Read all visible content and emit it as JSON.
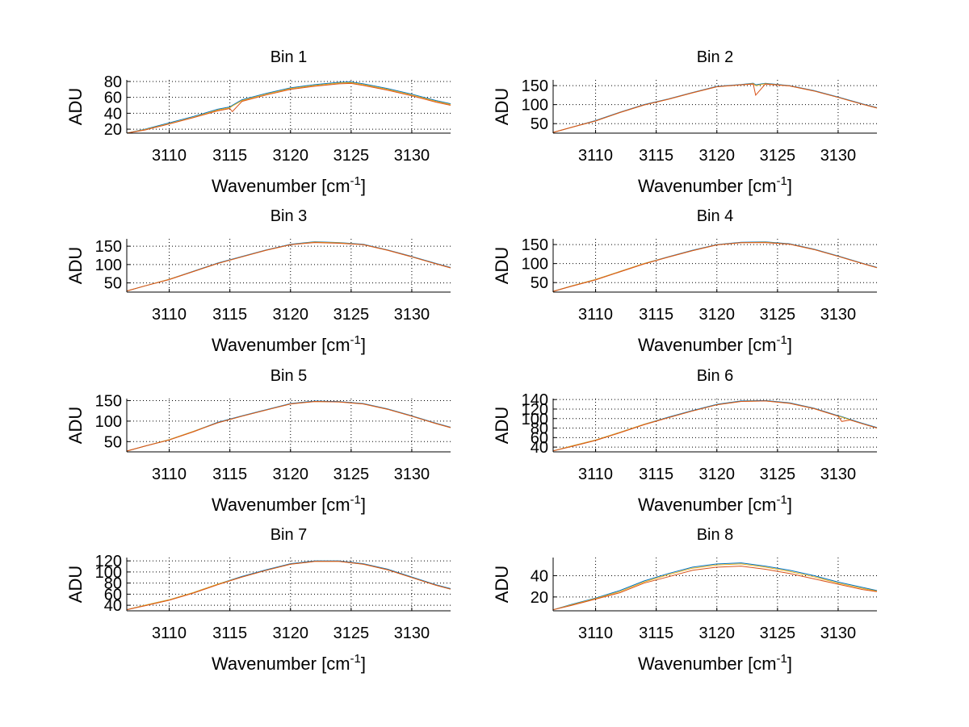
{
  "figure": {
    "background": "#ffffff",
    "series_colors": [
      "#0072bd",
      "#edb120",
      "#d95319"
    ]
  },
  "chart_data": [
    {
      "type": "line",
      "title": "Bin 1",
      "xlabel": "Wavenumber [cm",
      "xlabel_sup": "-1",
      "xlabel_suffix": "]",
      "ylabel": "ADU",
      "xlim": [
        3106.5,
        3133.2
      ],
      "ylim": [
        15,
        82
      ],
      "xticks": [
        3110,
        3115,
        3120,
        3125,
        3130
      ],
      "yticks": [
        20,
        40,
        60,
        80
      ],
      "grid": true,
      "x": [
        3106.5,
        3108,
        3110,
        3112,
        3114,
        3115,
        3115.2,
        3116,
        3118,
        3120,
        3122,
        3124,
        3125,
        3126,
        3128,
        3130,
        3132,
        3133.2
      ],
      "series": [
        {
          "values": [
            15,
            20,
            28,
            36,
            45,
            48,
            50,
            57,
            65,
            72,
            76,
            79,
            79.5,
            77,
            71,
            64,
            56,
            52
          ]
        },
        {
          "values": [
            15,
            19.5,
            27,
            35,
            44,
            47,
            49,
            56,
            64,
            71,
            75,
            78,
            78.5,
            76,
            70,
            63,
            55,
            51
          ]
        },
        {
          "values": [
            15,
            19,
            26.5,
            34.5,
            43,
            46,
            42,
            55,
            63,
            70,
            74,
            77,
            77.5,
            75,
            69,
            62,
            54,
            50
          ]
        }
      ]
    },
    {
      "type": "line",
      "title": "Bin 2",
      "xlabel": "Wavenumber [cm",
      "xlabel_sup": "-1",
      "xlabel_suffix": "]",
      "ylabel": "ADU",
      "xlim": [
        3106.5,
        3133.2
      ],
      "ylim": [
        25,
        165
      ],
      "xticks": [
        3110,
        3115,
        3120,
        3125,
        3130
      ],
      "yticks": [
        50,
        100,
        150
      ],
      "grid": true,
      "x": [
        3106.5,
        3108,
        3110,
        3112,
        3114,
        3116,
        3118,
        3120,
        3122,
        3123,
        3123.2,
        3124,
        3126,
        3128,
        3130,
        3132,
        3133.2
      ],
      "series": [
        {
          "values": [
            27,
            40,
            58,
            80,
            100,
            115,
            132,
            148,
            153,
            156,
            152,
            156,
            150,
            137,
            120,
            102,
            92
          ]
        },
        {
          "values": [
            27,
            40,
            57,
            79,
            99,
            114,
            131,
            147,
            152,
            155,
            150,
            155,
            149,
            136,
            119,
            101,
            91
          ]
        },
        {
          "values": [
            27,
            40,
            57,
            79,
            99,
            114,
            131,
            147,
            152,
            154,
            125,
            154,
            149,
            136,
            119,
            101,
            91
          ]
        }
      ]
    },
    {
      "type": "line",
      "title": "Bin 3",
      "xlabel": "Wavenumber [cm",
      "xlabel_sup": "-1",
      "xlabel_suffix": "]",
      "ylabel": "ADU",
      "xlim": [
        3106.5,
        3133.2
      ],
      "ylim": [
        25,
        170
      ],
      "xticks": [
        3110,
        3115,
        3120,
        3125,
        3130
      ],
      "yticks": [
        50,
        100,
        150
      ],
      "grid": true,
      "x": [
        3106.5,
        3108,
        3110,
        3112,
        3114,
        3116,
        3118,
        3120,
        3122,
        3124,
        3126,
        3128,
        3130,
        3132,
        3133.2
      ],
      "series": [
        {
          "values": [
            28,
            42,
            60,
            82,
            104,
            122,
            140,
            155,
            162,
            160,
            155,
            140,
            122,
            103,
            92
          ]
        },
        {
          "values": [
            28,
            42,
            60,
            81,
            103,
            121,
            139,
            154,
            161,
            159,
            154,
            139,
            121,
            102,
            91
          ]
        },
        {
          "values": [
            28,
            42,
            59,
            81,
            103,
            121,
            139,
            154,
            160,
            158,
            154,
            139,
            121,
            102,
            91
          ]
        }
      ]
    },
    {
      "type": "line",
      "title": "Bin 4",
      "xlabel": "Wavenumber [cm",
      "xlabel_sup": "-1",
      "xlabel_suffix": "]",
      "ylabel": "ADU",
      "xlim": [
        3106.5,
        3133.2
      ],
      "ylim": [
        25,
        165
      ],
      "xticks": [
        3110,
        3115,
        3120,
        3125,
        3130
      ],
      "yticks": [
        50,
        100,
        150
      ],
      "grid": true,
      "x": [
        3106.5,
        3108,
        3110,
        3112,
        3114,
        3116,
        3118,
        3120,
        3122,
        3124,
        3126,
        3128,
        3130,
        3132,
        3133.2
      ],
      "series": [
        {
          "values": [
            27,
            41,
            58,
            79,
            100,
            118,
            135,
            150,
            156,
            157,
            152,
            138,
            120,
            101,
            90
          ]
        },
        {
          "values": [
            27,
            41,
            58,
            79,
            100,
            117,
            134,
            149,
            155,
            156,
            151,
            137,
            119,
            100,
            89
          ]
        },
        {
          "values": [
            27,
            40,
            57,
            78,
            99,
            117,
            134,
            149,
            155,
            155,
            151,
            137,
            119,
            100,
            89
          ]
        }
      ]
    },
    {
      "type": "line",
      "title": "Bin 5",
      "xlabel": "Wavenumber [cm",
      "xlabel_sup": "-1",
      "xlabel_suffix": "]",
      "ylabel": "ADU",
      "xlim": [
        3106.5,
        3133.2
      ],
      "ylim": [
        25,
        155
      ],
      "xticks": [
        3110,
        3115,
        3120,
        3125,
        3130
      ],
      "yticks": [
        50,
        100,
        150
      ],
      "grid": true,
      "x": [
        3106.5,
        3108,
        3110,
        3112,
        3114,
        3116,
        3118,
        3120,
        3122,
        3124,
        3126,
        3128,
        3130,
        3132,
        3133.2
      ],
      "series": [
        {
          "values": [
            27,
            39,
            55,
            75,
            97,
            113,
            128,
            143,
            149,
            148,
            143,
            130,
            113,
            95,
            85
          ]
        },
        {
          "values": [
            27,
            39,
            55,
            75,
            96,
            112,
            127,
            142,
            148,
            147,
            142,
            129,
            112,
            94,
            84
          ]
        },
        {
          "values": [
            27,
            39,
            54,
            74,
            96,
            112,
            127,
            142,
            148,
            147,
            142,
            129,
            112,
            94,
            84
          ]
        }
      ]
    },
    {
      "type": "line",
      "title": "Bin 6",
      "xlabel": "Wavenumber [cm",
      "xlabel_sup": "-1",
      "xlabel_suffix": "]",
      "ylabel": "ADU",
      "xlim": [
        3106.5,
        3133.2
      ],
      "ylim": [
        30,
        142
      ],
      "xticks": [
        3110,
        3115,
        3120,
        3125,
        3130
      ],
      "yticks": [
        40,
        60,
        80,
        100,
        120,
        140
      ],
      "grid": true,
      "x": [
        3106.5,
        3108,
        3110,
        3112,
        3114,
        3116,
        3118,
        3120,
        3122,
        3124,
        3126,
        3128,
        3130,
        3130.3,
        3131,
        3132,
        3133.2
      ],
      "series": [
        {
          "values": [
            32,
            42,
            55,
            71,
            88,
            103,
            117,
            130,
            137,
            138,
            133,
            122,
            106,
            104,
            98,
            90,
            81
          ]
        },
        {
          "values": [
            32,
            42,
            55,
            71,
            88,
            102,
            116,
            129,
            136,
            137,
            132,
            121,
            105,
            103,
            97,
            89,
            80
          ]
        },
        {
          "values": [
            32,
            41,
            54,
            70,
            87,
            102,
            116,
            129,
            136,
            137,
            132,
            121,
            105,
            94,
            97,
            89,
            80
          ]
        }
      ]
    },
    {
      "type": "line",
      "title": "Bin 7",
      "xlabel": "Wavenumber [cm",
      "xlabel_sup": "-1",
      "xlabel_suffix": "]",
      "ylabel": "ADU",
      "xlim": [
        3106.5,
        3133.2
      ],
      "ylim": [
        30,
        126
      ],
      "xticks": [
        3110,
        3115,
        3120,
        3125,
        3130
      ],
      "yticks": [
        40,
        60,
        80,
        100,
        120
      ],
      "grid": true,
      "x": [
        3106.5,
        3108,
        3110,
        3112,
        3114,
        3116,
        3118,
        3120,
        3122,
        3124,
        3126,
        3128,
        3130,
        3132,
        3133.2
      ],
      "series": [
        {
          "values": [
            32,
            40,
            50,
            63,
            78,
            92,
            104,
            115,
            120,
            120,
            115,
            105,
            91,
            77,
            70
          ]
        },
        {
          "values": [
            32,
            40,
            50,
            63,
            78,
            91,
            103,
            114,
            119,
            119,
            114,
            104,
            90,
            76,
            69
          ]
        },
        {
          "values": [
            32,
            39,
            49,
            62,
            77,
            91,
            103,
            114,
            119,
            119,
            114,
            104,
            90,
            76,
            69
          ]
        }
      ]
    },
    {
      "type": "line",
      "title": "Bin 8",
      "xlabel": "Wavenumber [cm",
      "xlabel_sup": "-1",
      "xlabel_suffix": "]",
      "ylabel": "ADU",
      "xlim": [
        3106.5,
        3133.2
      ],
      "ylim": [
        7,
        57
      ],
      "xticks": [
        3110,
        3115,
        3120,
        3125,
        3130
      ],
      "yticks": [
        20,
        40
      ],
      "grid": true,
      "x": [
        3106.5,
        3108,
        3110,
        3112,
        3114,
        3116,
        3118,
        3120,
        3122,
        3124,
        3126,
        3128,
        3130,
        3132,
        3133.2
      ],
      "series": [
        {
          "values": [
            8,
            13,
            19,
            26,
            35,
            42,
            48,
            51,
            52,
            49,
            45,
            40,
            34,
            29,
            26
          ]
        },
        {
          "values": [
            8,
            12.5,
            18.5,
            25,
            34,
            41,
            47,
            50,
            51,
            48,
            44,
            39,
            33,
            28,
            25.5
          ]
        },
        {
          "values": [
            8,
            12,
            18,
            24,
            33,
            39,
            45,
            48,
            49,
            46,
            42,
            37,
            32,
            27,
            25
          ]
        }
      ]
    }
  ]
}
